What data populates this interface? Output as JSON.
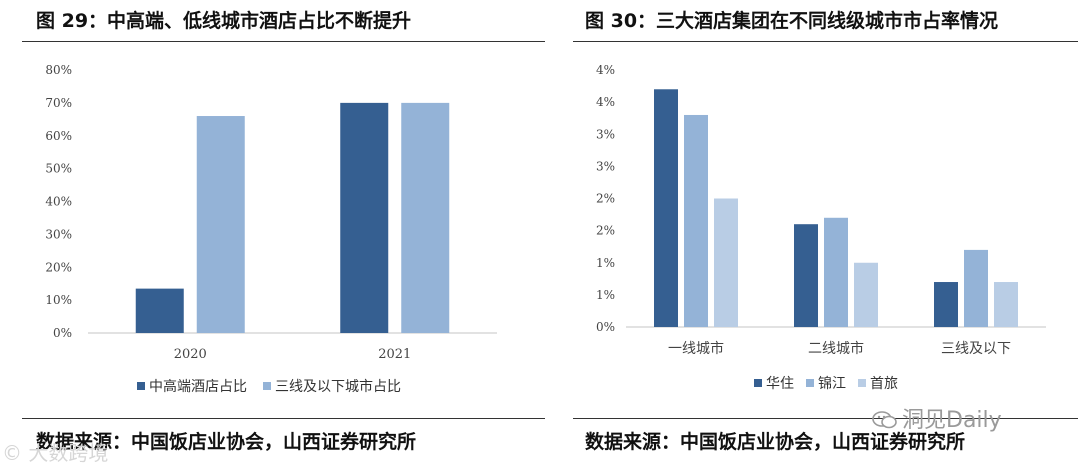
{
  "left": {
    "title": "图 29：中高端、低线城市酒店占比不断提升",
    "source": "数据来源：中国饭店业协会，山西证券研究所"
  },
  "right": {
    "title": "图 30：三大酒店集团在不同线级城市市占率情况",
    "source": "数据来源：中国饭店业协会，山西证券研究所"
  },
  "watermarks": {
    "left": "© 大数跨境",
    "right": "洞见Daily"
  },
  "colors": {
    "dark_blue": "#355f91",
    "mid_blue": "#94b3d7",
    "light_blue": "#b9cde5",
    "axis": "#d0d0d0"
  },
  "chart_data": [
    {
      "type": "bar",
      "categories": [
        "2020",
        "2021"
      ],
      "series": [
        {
          "name": "中高端酒店占比",
          "values": [
            13.5,
            70.0
          ],
          "color": "#355f91"
        },
        {
          "name": "三线及以下城市占比",
          "values": [
            66.0,
            70.0
          ],
          "color": "#94b3d7"
        }
      ],
      "ylim": [
        0,
        80
      ],
      "yticks": [
        "0%",
        "10%",
        "20%",
        "30%",
        "40%",
        "50%",
        "60%",
        "70%",
        "80%"
      ],
      "legend": "bottom",
      "grid": false
    },
    {
      "type": "bar",
      "categories": [
        "一线城市",
        "二线城市",
        "三线及以下"
      ],
      "series": [
        {
          "name": "华住",
          "values": [
            3.7,
            1.6,
            0.7
          ],
          "color": "#355f91"
        },
        {
          "name": "锦江",
          "values": [
            3.3,
            1.7,
            1.2
          ],
          "color": "#94b3d7"
        },
        {
          "name": "首旅",
          "values": [
            2.0,
            1.0,
            0.7
          ],
          "color": "#b9cde5"
        }
      ],
      "ylim": [
        0,
        4
      ],
      "yticks": [
        "0%",
        "1%",
        "1%",
        "2%",
        "2%",
        "3%",
        "3%",
        "4%",
        "4%"
      ],
      "legend": "bottom",
      "grid": false
    }
  ]
}
